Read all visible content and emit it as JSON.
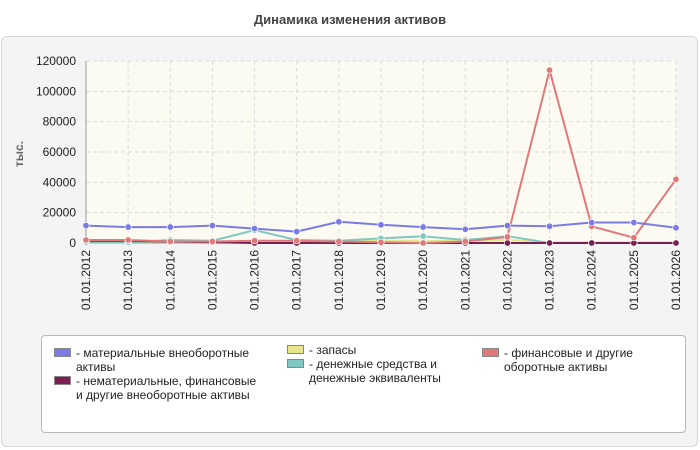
{
  "chart_data": {
    "type": "line",
    "title": "Динамика изменения активов",
    "ylabel": "тыс.",
    "xlabel": "",
    "ylim": [
      0,
      120000
    ],
    "yticks": [
      0,
      20000,
      40000,
      60000,
      80000,
      100000,
      120000
    ],
    "grid": true,
    "legend_position": "bottom",
    "categories": [
      "01.01.2012",
      "01.01.2013",
      "01.01.2014",
      "01.01.2015",
      "01.01.2016",
      "01.01.2017",
      "01.01.2018",
      "01.01.2019",
      "01.01.2020",
      "01.01.2021",
      "01.01.2022",
      "01.01.2023",
      "01.01.2024",
      "01.01.2025",
      "01.01.2026"
    ],
    "series": [
      {
        "name": "- материальные внеоборотные активы",
        "color": "#7b7be6",
        "values": [
          11500,
          10500,
          10500,
          11500,
          9500,
          7500,
          14000,
          12000,
          10500,
          9000,
          11500,
          11000,
          13500,
          13500,
          10000
        ]
      },
      {
        "name": "- нематериальные, финансовые и другие внеоборотные активы",
        "color": "#7a1f52",
        "values": [
          1500,
          1500,
          1000,
          500,
          0,
          0,
          0,
          0,
          0,
          0,
          0,
          0,
          0,
          0,
          0
        ]
      },
      {
        "name": "- запасы",
        "color": "#e6e68c",
        "values": [
          1000,
          1000,
          1000,
          1000,
          1000,
          1000,
          1000,
          1500,
          1500,
          1500,
          2000,
          500,
          500,
          500,
          500
        ]
      },
      {
        "name": "- денежные средства и денежные эквиваленты",
        "color": "#80c8c0",
        "values": [
          500,
          500,
          2000,
          1500,
          8500,
          2000,
          1500,
          3000,
          4500,
          2000,
          4500,
          0,
          0,
          0,
          0
        ]
      },
      {
        "name": "- финансовые и другие оборотные активы",
        "color": "#e07a7a",
        "values": [
          2000,
          2000,
          1000,
          1000,
          1500,
          1500,
          1000,
          500,
          0,
          1000,
          4000,
          114000,
          11000,
          3500,
          42000
        ]
      }
    ]
  }
}
